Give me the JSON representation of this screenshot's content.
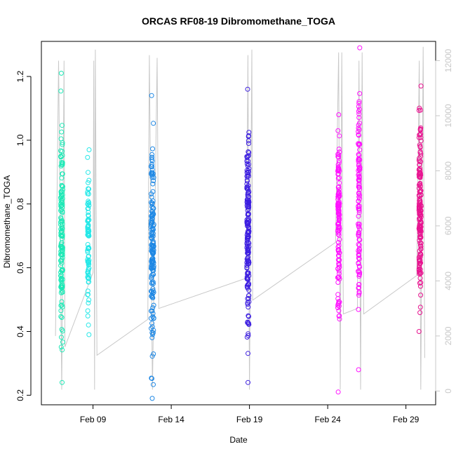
{
  "chart_data": {
    "type": "scatter",
    "title": "ORCAS RF08-19 Dibromomethane_TOGA",
    "xlabel": "Date",
    "ylabel": "Dibromomethane_TOGA",
    "y_ticks": [
      "0.2",
      "0.4",
      "0.6",
      "0.8",
      "1.0",
      "1.2"
    ],
    "ylim": [
      0.17,
      1.31
    ],
    "x_tick_labels": [
      "Feb 09",
      "Feb 14",
      "Feb 19",
      "Feb 24",
      "Feb 29"
    ],
    "x_tick_values": [
      9,
      14,
      19,
      24,
      29
    ],
    "xlim": [
      5.7,
      30.9
    ],
    "y2_ticks": [
      "0",
      "2000",
      "4000",
      "6000",
      "8000",
      "10000",
      "12000"
    ],
    "y2lim": [
      -500,
      12700
    ],
    "grid": false,
    "colors": {
      "flight_colors": [
        "#1de9b6",
        "#26e8e8",
        "#1e88e5",
        "#3d1fe0",
        "#ff12ff",
        "#e81490"
      ],
      "secondary_series": "#c8c8c8",
      "axis": "#000000"
    },
    "series": [
      {
        "date_center": 7.0,
        "spread": 0.07,
        "ymin": 0.24,
        "ymax": 1.21,
        "ymean": 0.68,
        "n": 140,
        "color": "#1de9b6"
      },
      {
        "date_center": 8.7,
        "spread": 0.05,
        "ymin": 0.39,
        "ymax": 0.97,
        "ymean": 0.67,
        "n": 95,
        "color": "#26e8e8"
      },
      {
        "date_center": 12.8,
        "spread": 0.09,
        "ymin": 0.19,
        "ymax": 1.14,
        "ymean": 0.66,
        "n": 160,
        "color": "#1e88e5"
      },
      {
        "date_center": 18.9,
        "spread": 0.07,
        "ymin": 0.24,
        "ymax": 1.16,
        "ymean": 0.72,
        "n": 170,
        "color": "#3d1fe0"
      },
      {
        "date_center": 24.7,
        "spread": 0.06,
        "ymin": 0.21,
        "ymax": 1.08,
        "ymean": 0.74,
        "n": 130,
        "color": "#ff12ff"
      },
      {
        "date_center": 26.0,
        "spread": 0.05,
        "ymin": 0.28,
        "ymax": 1.29,
        "ymean": 0.82,
        "n": 110,
        "color": "#ff12ff"
      },
      {
        "date_center": 29.9,
        "spread": 0.07,
        "ymin": 0.4,
        "ymax": 1.17,
        "ymean": 0.77,
        "n": 170,
        "color": "#e81490"
      }
    ],
    "secondary_series": {
      "axis": "right",
      "color": "#c8c8c8",
      "points": [
        [
          6.6,
          2000
        ],
        [
          6.8,
          12000
        ],
        [
          7.0,
          50
        ],
        [
          7.15,
          12000
        ],
        [
          7.2,
          1600
        ],
        [
          9.0,
          4300
        ],
        [
          9.05,
          12000
        ],
        [
          9.1,
          50
        ],
        [
          9.15,
          12400
        ],
        [
          9.25,
          1300
        ],
        [
          12.5,
          2600
        ],
        [
          12.6,
          12200
        ],
        [
          12.8,
          50
        ],
        [
          13.1,
          12100
        ],
        [
          13.2,
          3000
        ],
        [
          18.8,
          4100
        ],
        [
          18.9,
          12200
        ],
        [
          19.0,
          50
        ],
        [
          19.15,
          12400
        ],
        [
          19.2,
          3300
        ],
        [
          24.5,
          5400
        ],
        [
          24.7,
          12300
        ],
        [
          24.8,
          50
        ],
        [
          24.9,
          12300
        ],
        [
          25.0,
          2800
        ],
        [
          25.9,
          3000
        ],
        [
          26.0,
          12000
        ],
        [
          26.1,
          50
        ],
        [
          26.2,
          12300
        ],
        [
          26.3,
          2800
        ],
        [
          29.7,
          4200
        ],
        [
          29.85,
          12000
        ],
        [
          29.95,
          50
        ],
        [
          30.1,
          12500
        ],
        [
          30.2,
          1200
        ]
      ]
    }
  }
}
